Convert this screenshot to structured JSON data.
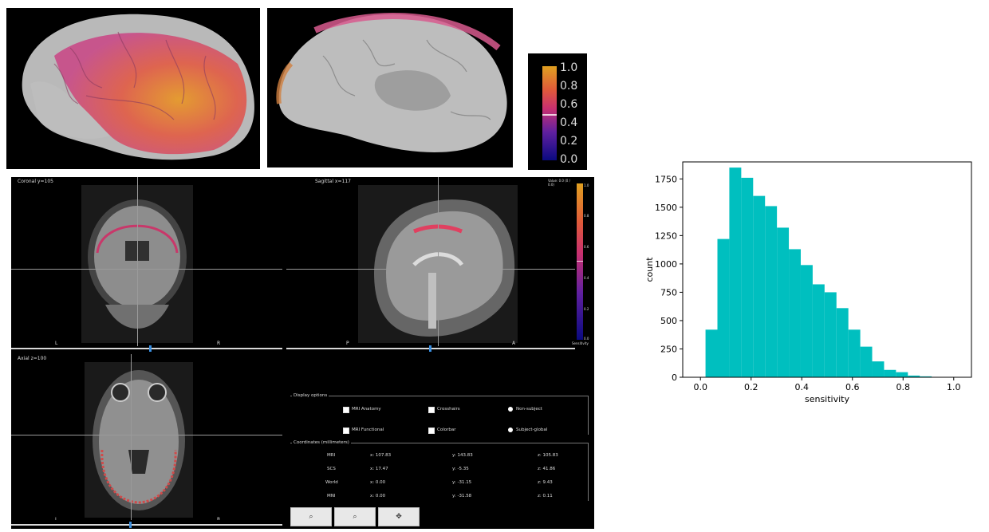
{
  "colorbar_top": {
    "ticks": [
      "1.0",
      "0.8",
      "0.6",
      "0.4",
      "0.2",
      "0.0"
    ]
  },
  "viewer": {
    "coronal": {
      "title": "Coronal   y=105",
      "left": "L",
      "right": "R",
      "slider_pos": 0.5
    },
    "sagittal": {
      "title": "Sagittal   x=117",
      "left": "P",
      "right": "A",
      "slider_pos": 0.5,
      "corner": "Value: 0.0 (0 / 0.0)"
    },
    "axial": {
      "title": "Axial   z=100",
      "left": "L",
      "right": "R",
      "slider_pos": 0.42
    },
    "colorbar_ticks": [
      "1.0",
      "0.8",
      "0.6",
      "0.4",
      "0.2",
      "0.0"
    ],
    "colorbar_label": "Sensitivity",
    "display_options": {
      "label": "Display options",
      "mri_anatomy": "MRI Anatomy",
      "mri_functional": "MRI Functional",
      "crosshairs": "Crosshairs",
      "colorbar": "Colorbar",
      "nonsubject": "Non-subject",
      "subject": "Subject-global"
    },
    "coords": {
      "label": "Coordinates (millimeters)",
      "rows": [
        {
          "name": "MRI",
          "x": "x: 107.83",
          "y": "y: 143.83",
          "z": "z: 105.83"
        },
        {
          "name": "SCS",
          "x": "x: 17.47",
          "y": "y: -5.35",
          "z": "z: 41.86"
        },
        {
          "name": "World",
          "x": "x: 0.00",
          "y": "y: -31.15",
          "z": "z: 9.43"
        },
        {
          "name": "MNI",
          "x": "x: 0.00",
          "y": "y: -31.58",
          "z": "z: 0.11"
        }
      ]
    },
    "buttons": [
      "⌕",
      "⌕",
      "✥"
    ]
  },
  "chart_data": {
    "type": "bar",
    "xlabel": "sensitivity",
    "ylabel": "count",
    "xlim": [
      -0.07,
      1.07
    ],
    "ylim": [
      0,
      1900
    ],
    "xticks": [
      0.0,
      0.2,
      0.4,
      0.6,
      0.8,
      1.0
    ],
    "xtick_labels": [
      "0.0",
      "0.2",
      "0.4",
      "0.6",
      "0.8",
      "1.0"
    ],
    "yticks": [
      0,
      250,
      500,
      750,
      1000,
      1250,
      1500,
      1750
    ],
    "ytick_labels": [
      "0",
      "250",
      "500",
      "750",
      "1000",
      "1250",
      "1500",
      "1750"
    ],
    "bin_edges": [
      0.02,
      0.067,
      0.114,
      0.161,
      0.208,
      0.255,
      0.302,
      0.349,
      0.396,
      0.443,
      0.49,
      0.537,
      0.584,
      0.631,
      0.678,
      0.725,
      0.772,
      0.819,
      0.866,
      0.913,
      0.96
    ],
    "values": [
      420,
      1220,
      1850,
      1760,
      1600,
      1510,
      1320,
      1130,
      990,
      820,
      750,
      610,
      420,
      270,
      140,
      65,
      45,
      15,
      8,
      3
    ],
    "color": "#00bfbf"
  }
}
